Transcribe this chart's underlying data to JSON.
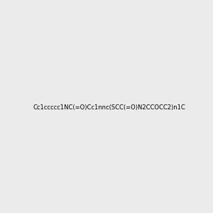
{
  "smiles": "Cc1ccccc1NC(=O)Cc1nnc(SCC(=O)N2CCOCC2)n1C",
  "img_size": [
    300,
    300
  ],
  "background": "#ebebeb",
  "atom_colors": {
    "N": "#0000ff",
    "O": "#ff0000",
    "S": "#cccc00",
    "H": "#008080"
  },
  "bond_color": "#000000",
  "title": ""
}
